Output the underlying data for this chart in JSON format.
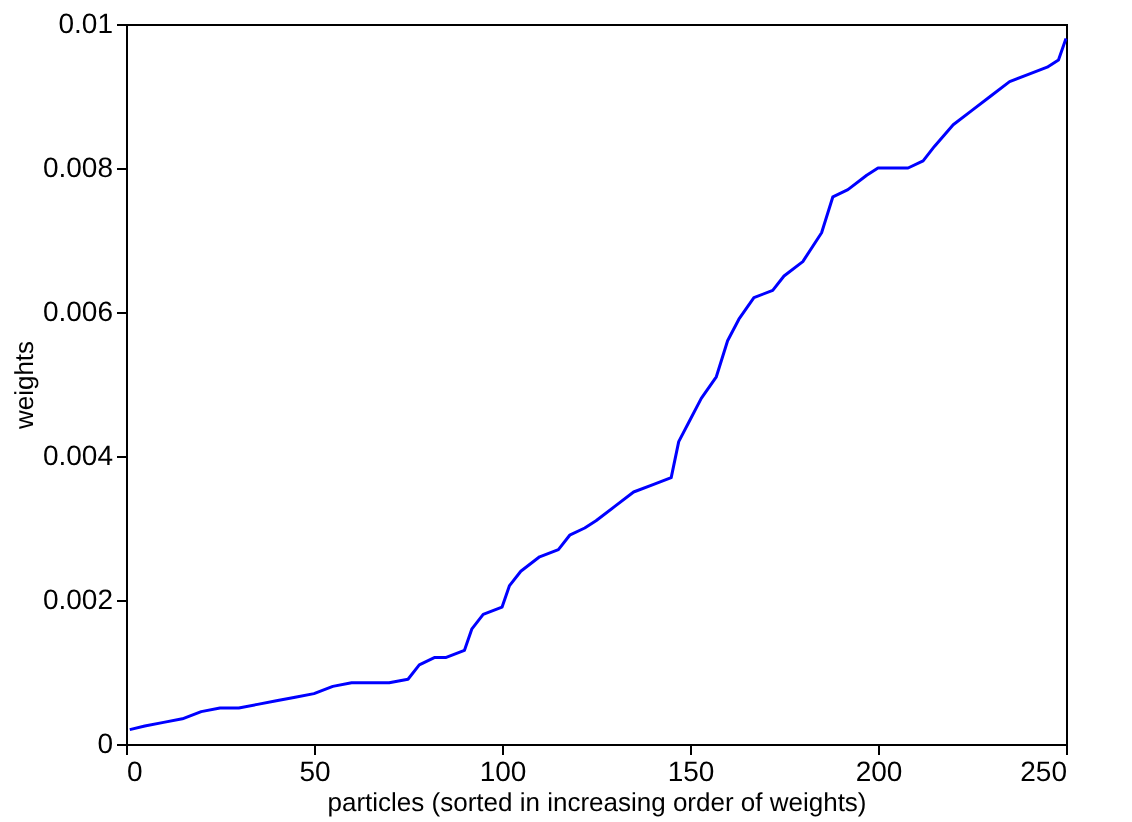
{
  "chart_data": {
    "type": "line",
    "xlabel": "particles (sorted in increasing order of weights)",
    "ylabel": "weights",
    "x": [
      1,
      5,
      10,
      15,
      20,
      25,
      30,
      35,
      40,
      45,
      50,
      55,
      60,
      65,
      70,
      75,
      78,
      82,
      85,
      90,
      92,
      95,
      100,
      102,
      105,
      110,
      115,
      118,
      122,
      125,
      130,
      135,
      140,
      145,
      147,
      150,
      153,
      157,
      160,
      163,
      167,
      172,
      175,
      180,
      185,
      188,
      192,
      197,
      200,
      208,
      212,
      215,
      220,
      225,
      230,
      235,
      240,
      245,
      248,
      250
    ],
    "series": [
      {
        "color": "#0000ff",
        "values": [
          0.0002,
          0.00025,
          0.0003,
          0.00035,
          0.00045,
          0.0005,
          0.0005,
          0.00055,
          0.0006,
          0.00065,
          0.0007,
          0.0008,
          0.00085,
          0.00085,
          0.00085,
          0.0009,
          0.0011,
          0.0012,
          0.0012,
          0.0013,
          0.0016,
          0.0018,
          0.0019,
          0.0022,
          0.0024,
          0.0026,
          0.0027,
          0.0029,
          0.003,
          0.0031,
          0.0033,
          0.0035,
          0.0036,
          0.0037,
          0.0042,
          0.0045,
          0.0048,
          0.0051,
          0.0056,
          0.0059,
          0.0062,
          0.0063,
          0.0065,
          0.0067,
          0.0071,
          0.0076,
          0.0077,
          0.0079,
          0.008,
          0.008,
          0.0081,
          0.0083,
          0.0086,
          0.0088,
          0.009,
          0.0092,
          0.0093,
          0.0094,
          0.0095,
          0.0098
        ]
      }
    ],
    "xlim": [
      0,
      250
    ],
    "xticks": [
      0,
      50,
      100,
      150,
      200,
      250
    ],
    "ylim": [
      0,
      0.01
    ],
    "yticks": [
      0,
      0.002,
      0.004,
      0.006,
      0.008,
      0.01
    ],
    "grid": false
  }
}
